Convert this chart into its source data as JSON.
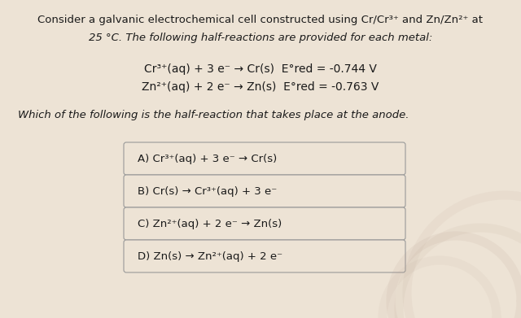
{
  "background_color": "#ede3d5",
  "title_line1": "Consider a galvanic electrochemical cell constructed using Cr/Cr³⁺ and Zn/Zn²⁺ at",
  "title_line2": "25 °C. The following half-reactions are provided for each metal:",
  "reaction1": "Cr³⁺(aq) + 3 e⁻ → Cr(s)  E°red = -0.744 V",
  "reaction2": "Zn²⁺(aq) + 2 e⁻ → Zn(s)  E°red = -0.763 V",
  "question": "Which of the following is the half-reaction that takes place at the anode.",
  "choices": [
    "A) Cr³⁺(aq) + 3 e⁻ → Cr(s)",
    "B) Cr(s) → Cr³⁺(aq) + 3 e⁻",
    "C) Zn²⁺(aq) + 2 e⁻ → Zn(s)",
    "D) Zn(s) → Zn²⁺(aq) + 2 e⁻"
  ],
  "text_color": "#1a1a1a",
  "box_facecolor": "#ede3d5",
  "box_edgecolor": "#999999",
  "font_size_title": 9.5,
  "font_size_reactions": 10,
  "font_size_question": 9.5,
  "font_size_choices": 9.5,
  "figwidth": 6.4,
  "figheight": 3.91,
  "dpi": 100
}
